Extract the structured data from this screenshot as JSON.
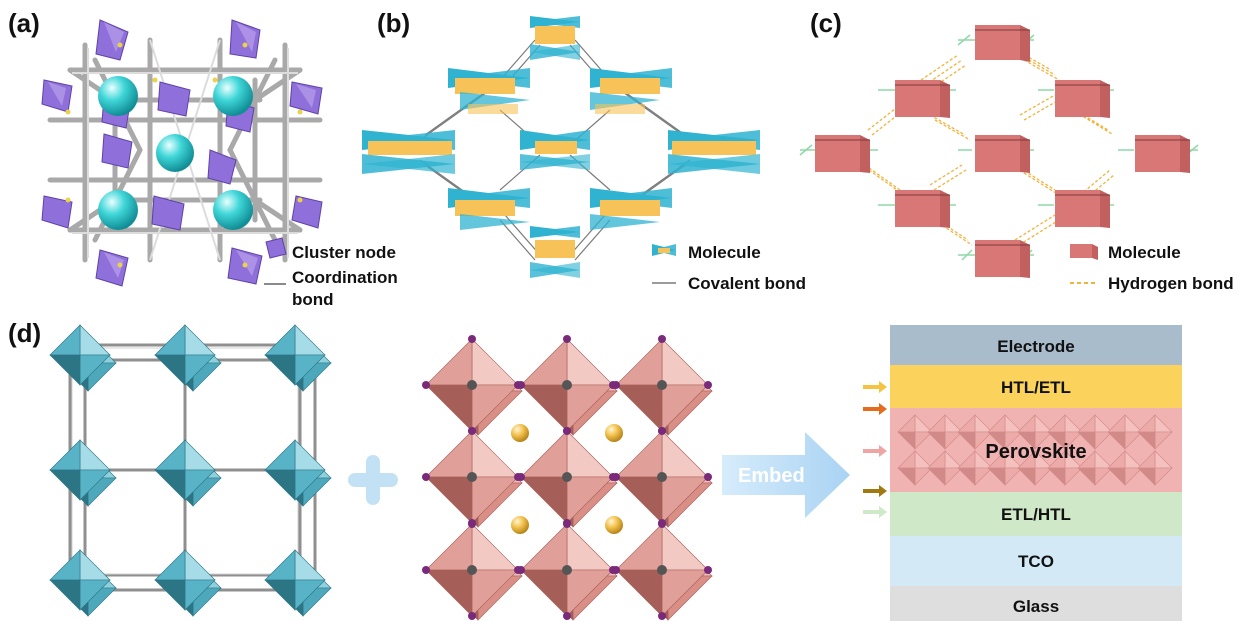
{
  "panels": {
    "a": {
      "label": "(a)",
      "legend": [
        {
          "text": "Cluster node",
          "icon": "purple-polyhedron-icon"
        },
        {
          "text": "Coordination",
          "icon": "grey-rod-icon"
        },
        {
          "text": "bond",
          "icon": ""
        }
      ]
    },
    "b": {
      "label": "(b)",
      "legend": [
        {
          "text": "Molecule",
          "icon": "blue-molecule-icon"
        },
        {
          "text": "Covalent bond",
          "icon": "grey-line-icon"
        }
      ]
    },
    "c": {
      "label": "(c)",
      "legend": [
        {
          "text": "Molecule",
          "icon": "red-block-icon"
        },
        {
          "text": "Hydrogen bond",
          "icon": "orange-dashed-line-icon"
        }
      ]
    },
    "d": {
      "label": "(d)",
      "plus_symbol": "+",
      "arrow_text": "Embed",
      "device_layers": [
        {
          "name": "Electrode",
          "color": "#a9bccb"
        },
        {
          "name": "HTL/ETL",
          "color": "#fbd35c"
        },
        {
          "name": "Perovskite",
          "color": "#f1b2b2"
        },
        {
          "name": "ETL/HTL",
          "color": "#cfe8c8"
        },
        {
          "name": "TCO",
          "color": "#d3e9f6"
        },
        {
          "name": "Glass",
          "color": "#dedede"
        }
      ]
    }
  },
  "colors": {
    "cluster": "#8f6fd9",
    "sphere": "#3ed6d9",
    "rod": "#b4b4b4",
    "molecule_blue": "#2fb3d1",
    "molecule_yellow": "#f7c358",
    "molecule_red": "#d97777",
    "hbond": "#f3b23c",
    "octa_teal": "#4ea8bb",
    "octa_red": "#d98f86",
    "atom_purple": "#7a2a7a",
    "atom_yellow": "#f2c04a",
    "arrow_blue": "#bfe0f7"
  }
}
